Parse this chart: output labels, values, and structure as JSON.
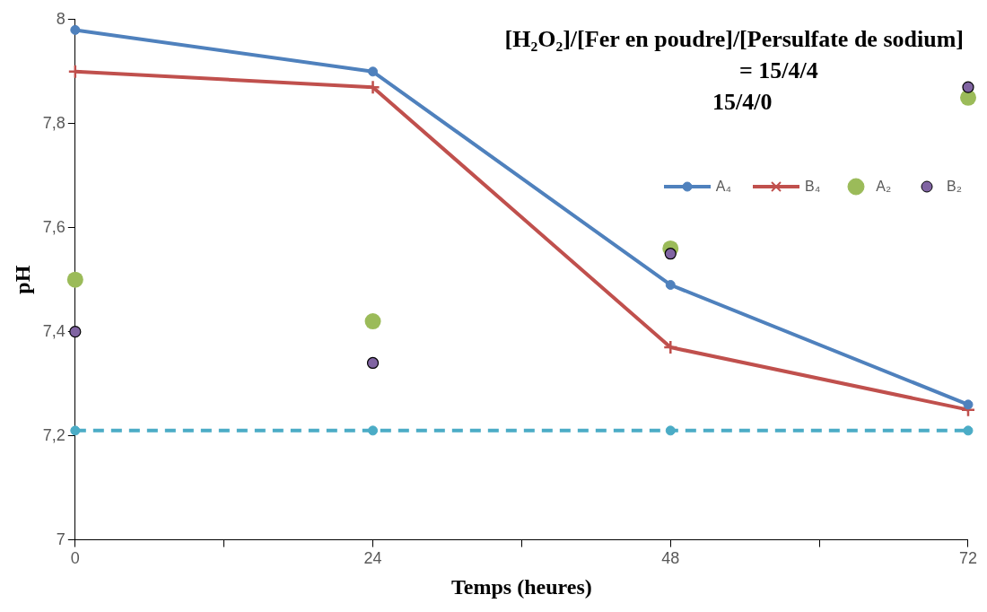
{
  "chart_data": {
    "type": "line",
    "xlabel": "Temps (heures)",
    "ylabel": "pH",
    "annotations": [
      "[H₂O₂]/[Fer en poudre]/[Persulfate de sodium]",
      "= 15/4/4",
      "15/4/0"
    ],
    "x": [
      0,
      24,
      48,
      72
    ],
    "xlim": [
      0,
      72
    ],
    "xticks": [
      0,
      {
        "value": 12,
        "label": null
      },
      24,
      {
        "value": 36,
        "label": null
      },
      48,
      {
        "value": 60,
        "label": null
      },
      72
    ],
    "ylim": [
      7,
      8
    ],
    "yticks": [
      7,
      {
        "value": 7.2,
        "label": "7,2"
      },
      {
        "value": 7.4,
        "label": "7,4"
      },
      {
        "value": 7.6,
        "label": "7,6"
      },
      {
        "value": 7.8,
        "label": "7,8"
      },
      8
    ],
    "grid": false,
    "legend": "top right",
    "series": [
      {
        "name": "A₄",
        "color": "#4f81bd",
        "marker": "circle",
        "values": [
          7.98,
          7.9,
          7.49,
          7.26
        ]
      },
      {
        "name": "B₄",
        "color": "#c0504d",
        "marker": "cross",
        "values": [
          7.9,
          7.87,
          7.37,
          7.25
        ]
      },
      {
        "name": "A₂",
        "type": "scatter",
        "color": "#9bbb59",
        "marker": "circle",
        "values": [
          7.5,
          7.42,
          7.56,
          7.85
        ]
      },
      {
        "name": "B₂",
        "type": "scatter",
        "color": "#8064a2",
        "marker": "circle",
        "values": [
          7.4,
          7.34,
          7.55,
          7.87
        ]
      },
      {
        "color": "#4bacc6",
        "marker": "circle",
        "line_style": "dashed",
        "values": [
          7.21,
          7.21,
          7.21,
          7.21
        ]
      }
    ]
  }
}
